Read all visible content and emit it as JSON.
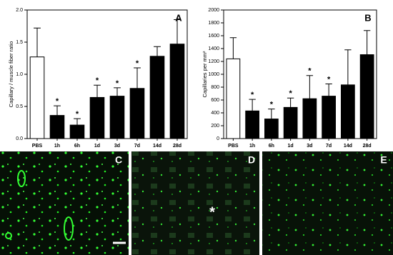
{
  "chart_data": [
    {
      "type": "bar",
      "panel_label": "A",
      "ylabel": "Capillary / muscle fiber ratio",
      "categories": [
        "PBS",
        "1h",
        "6h",
        "1d",
        "3d",
        "7d",
        "14d",
        "28d"
      ],
      "values": [
        1.27,
        0.36,
        0.21,
        0.64,
        0.66,
        0.78,
        1.28,
        1.47
      ],
      "errors": [
        0.45,
        0.15,
        0.1,
        0.19,
        0.13,
        0.32,
        0.15,
        0.38
      ],
      "colors": [
        "#ffffff",
        "#000000",
        "#000000",
        "#000000",
        "#000000",
        "#000000",
        "#000000",
        "#000000"
      ],
      "ylim": [
        0,
        2.0
      ],
      "yticks": [
        {
          "value": 0,
          "label": "0.0"
        },
        {
          "value": 0.5,
          "label": "0.5"
        },
        {
          "value": 1.0,
          "label": "1.0"
        },
        {
          "value": 1.5,
          "label": "1.5"
        },
        {
          "value": 2.0,
          "label": "2.0"
        }
      ],
      "annotations": [
        {
          "x": "1h",
          "text": "*"
        },
        {
          "x": "6h",
          "text": "*"
        },
        {
          "x": "1d",
          "text": "*"
        },
        {
          "x": "3d",
          "text": "*"
        },
        {
          "x": "7d",
          "text": "*"
        }
      ]
    },
    {
      "type": "bar",
      "panel_label": "B",
      "ylabel": "Capillaries per mm²",
      "categories": [
        "PBS",
        "1h",
        "6h",
        "1d",
        "3d",
        "7d",
        "14d",
        "28d"
      ],
      "values": [
        1240,
        430,
        305,
        485,
        620,
        660,
        835,
        1305
      ],
      "errors": [
        330,
        180,
        155,
        145,
        360,
        190,
        545,
        375
      ],
      "colors": [
        "#ffffff",
        "#000000",
        "#000000",
        "#000000",
        "#000000",
        "#000000",
        "#000000",
        "#000000"
      ],
      "ylim": [
        0,
        2000
      ],
      "yticks": [
        0,
        200,
        400,
        600,
        800,
        1000,
        1200,
        1400,
        1600,
        1800,
        2000
      ],
      "annotations": [
        {
          "x": "1h",
          "text": "*"
        },
        {
          "x": "6h",
          "text": "*"
        },
        {
          "x": "1d",
          "text": "*"
        },
        {
          "x": "3d",
          "text": "*"
        },
        {
          "x": "7d",
          "text": "*"
        }
      ]
    }
  ],
  "image_panels": [
    {
      "label": "C"
    },
    {
      "label": "D",
      "marker": "*"
    },
    {
      "label": "E"
    }
  ]
}
